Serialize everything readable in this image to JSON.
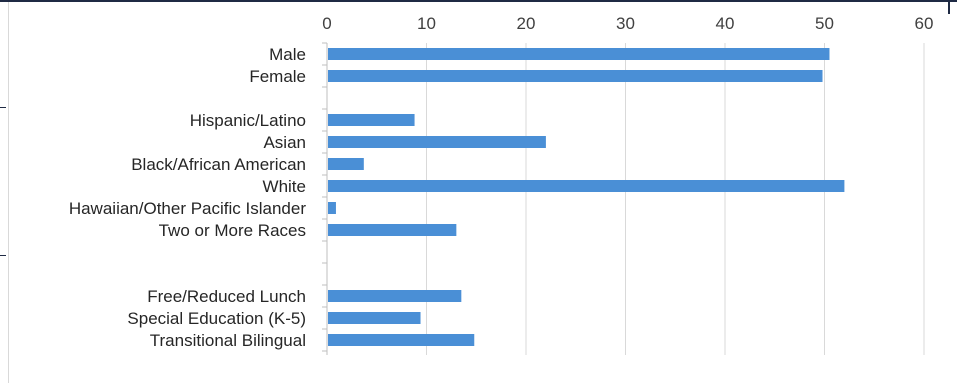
{
  "chart_data": {
    "type": "bar",
    "orientation": "horizontal",
    "x_axis_position": "top",
    "xlim": [
      0,
      60
    ],
    "x_ticks": [
      "0",
      "10",
      "20",
      "30",
      "40",
      "50",
      "60"
    ],
    "grid": true,
    "legend": "none",
    "bar_color": "#4a8fd6",
    "categories": [
      "Male",
      "Female",
      "",
      "Hispanic/Latino",
      "Asian",
      "Black/African American",
      "White",
      "Hawaiian/Other Pacific Islander",
      "Two or More Races",
      "",
      "",
      "Free/Reduced Lunch",
      "Special Education (K-5)",
      "Transitional Bilingual"
    ],
    "values": [
      50.5,
      49.8,
      null,
      8.8,
      22,
      3.7,
      52,
      0.9,
      13,
      null,
      null,
      13.5,
      9.4,
      14.8
    ]
  }
}
